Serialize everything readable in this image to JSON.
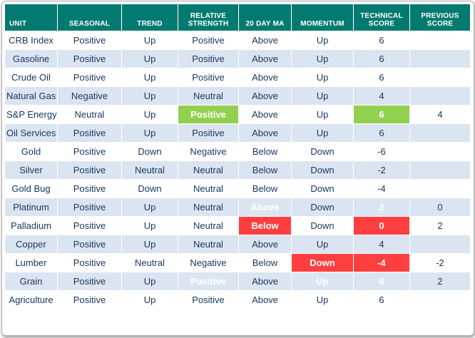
{
  "colors": {
    "header_bg": "#037a70",
    "alt_row": "#dbe5f1",
    "text": "#17365d",
    "green": "#92d050",
    "red": "#ff3f3f",
    "outer_border": "#95b3d7"
  },
  "table": {
    "columns": [
      "UNIT",
      "SEASONAL",
      "TREND",
      "RELATIVE STRENGTH",
      "20 DAY MA",
      "MOMENTUM",
      "TECHNICAL SCORE",
      "PREVIOUS SCORE"
    ],
    "rows": [
      {
        "cells": [
          "CRB Index",
          "Positive",
          "Up",
          "Positive",
          "Above",
          "Up",
          "6",
          ""
        ],
        "highlights": {}
      },
      {
        "cells": [
          "Gasoline",
          "Positive",
          "Up",
          "Positive",
          "Above",
          "Up",
          "6",
          ""
        ],
        "highlights": {}
      },
      {
        "cells": [
          "Crude Oil",
          "Positive",
          "Up",
          "Positive",
          "Above",
          "Up",
          "6",
          ""
        ],
        "highlights": {}
      },
      {
        "cells": [
          "Natural Gas",
          "Negative",
          "Up",
          "Neutral",
          "Above",
          "Up",
          "4",
          ""
        ],
        "highlights": {}
      },
      {
        "cells": [
          "S&P Energy",
          "Neutral",
          "Up",
          "Positive",
          "Above",
          "Up",
          "6",
          "4"
        ],
        "highlights": {
          "3": "green",
          "6": "green"
        }
      },
      {
        "cells": [
          "Oil Services",
          "Positive",
          "Up",
          "Positive",
          "Above",
          "Up",
          "6",
          ""
        ],
        "highlights": {}
      },
      {
        "cells": [
          "Gold",
          "Positive",
          "Down",
          "Negative",
          "Below",
          "Down",
          "-6",
          ""
        ],
        "highlights": {}
      },
      {
        "cells": [
          "Silver",
          "Positive",
          "Neutral",
          "Neutral",
          "Below",
          "Down",
          "-2",
          ""
        ],
        "highlights": {}
      },
      {
        "cells": [
          "Gold Bug",
          "Positive",
          "Down",
          "Neutral",
          "Below",
          "Down",
          "-4",
          ""
        ],
        "highlights": {}
      },
      {
        "cells": [
          "Platinum",
          "Positive",
          "Up",
          "Neutral",
          "Above",
          "Down",
          "2",
          "0"
        ],
        "highlights": {
          "4": "green",
          "6": "green"
        }
      },
      {
        "cells": [
          "Palladium",
          "Positive",
          "Up",
          "Neutral",
          "Below",
          "Down",
          "0",
          "2"
        ],
        "highlights": {
          "4": "red",
          "6": "red"
        }
      },
      {
        "cells": [
          "Copper",
          "Positive",
          "Up",
          "Neutral",
          "Above",
          "Up",
          "4",
          ""
        ],
        "highlights": {}
      },
      {
        "cells": [
          "Lumber",
          "Positive",
          "Neutral",
          "Negative",
          "Below",
          "Down",
          "-4",
          "-2"
        ],
        "highlights": {
          "5": "red",
          "6": "red"
        }
      },
      {
        "cells": [
          "Grain",
          "Positive",
          "Up",
          "Positive",
          "Above",
          "Up",
          "6",
          "2"
        ],
        "highlights": {
          "3": "green",
          "5": "green",
          "6": "green"
        }
      },
      {
        "cells": [
          "Agriculture",
          "Positive",
          "Up",
          "Positive",
          "Above",
          "Up",
          "6",
          ""
        ],
        "highlights": {}
      }
    ]
  }
}
